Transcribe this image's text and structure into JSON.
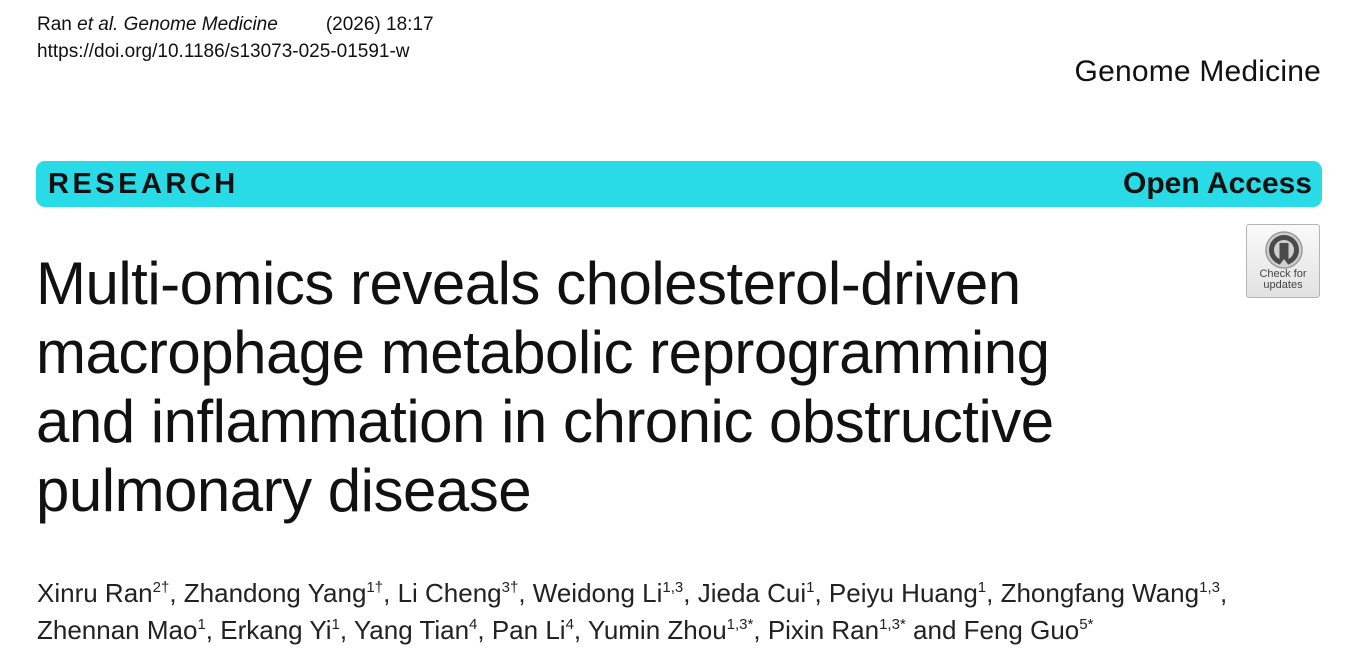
{
  "header": {
    "cite_prefix": "Ran",
    "cite_etal": "et al.",
    "journal_italic": "Genome Medicine",
    "year_volume": "(2026) 18:17",
    "doi": "https://doi.org/10.1186/s13073-025-01591-w",
    "journal_name": "Genome Medicine"
  },
  "banner": {
    "article_type": "RESEARCH",
    "access": "Open Access",
    "color": "#29dbe6"
  },
  "badge": {
    "line1": "Check for",
    "line2": "updates",
    "icon": "crossmark-icon"
  },
  "title": {
    "line1": "Multi-omics reveals cholesterol-driven",
    "line2": "macrophage metabolic reprogramming",
    "line3": "and inflammation in chronic obstructive",
    "line4": "pulmonary disease"
  },
  "authors": [
    {
      "name": "Xinru Ran",
      "sup": "2†",
      "sep": ", "
    },
    {
      "name": "Zhandong Yang",
      "sup": "1†",
      "sep": ", "
    },
    {
      "name": "Li Cheng",
      "sup": "3†",
      "sep": ", "
    },
    {
      "name": "Weidong Li",
      "sup": "1,3",
      "sep": ", "
    },
    {
      "name": "Jieda Cui",
      "sup": "1",
      "sep": ", "
    },
    {
      "name": "Peiyu Huang",
      "sup": "1",
      "sep": ", "
    },
    {
      "name": "Zhongfang Wang",
      "sup": "1,3",
      "sep": ","
    },
    {
      "name": "Zhennan Mao",
      "sup": "1",
      "sep": ", "
    },
    {
      "name": "Erkang Yi",
      "sup": "1",
      "sep": ", "
    },
    {
      "name": "Yang Tian",
      "sup": "4",
      "sep": ", "
    },
    {
      "name": "Pan Li",
      "sup": "4",
      "sep": ", "
    },
    {
      "name": "Yumin Zhou",
      "sup": "1,3*",
      "sep": ", "
    },
    {
      "name": "Pixin Ran",
      "sup": "1,3*",
      "sep": " and "
    },
    {
      "name": "Feng Guo",
      "sup": "5*",
      "sep": ""
    }
  ]
}
